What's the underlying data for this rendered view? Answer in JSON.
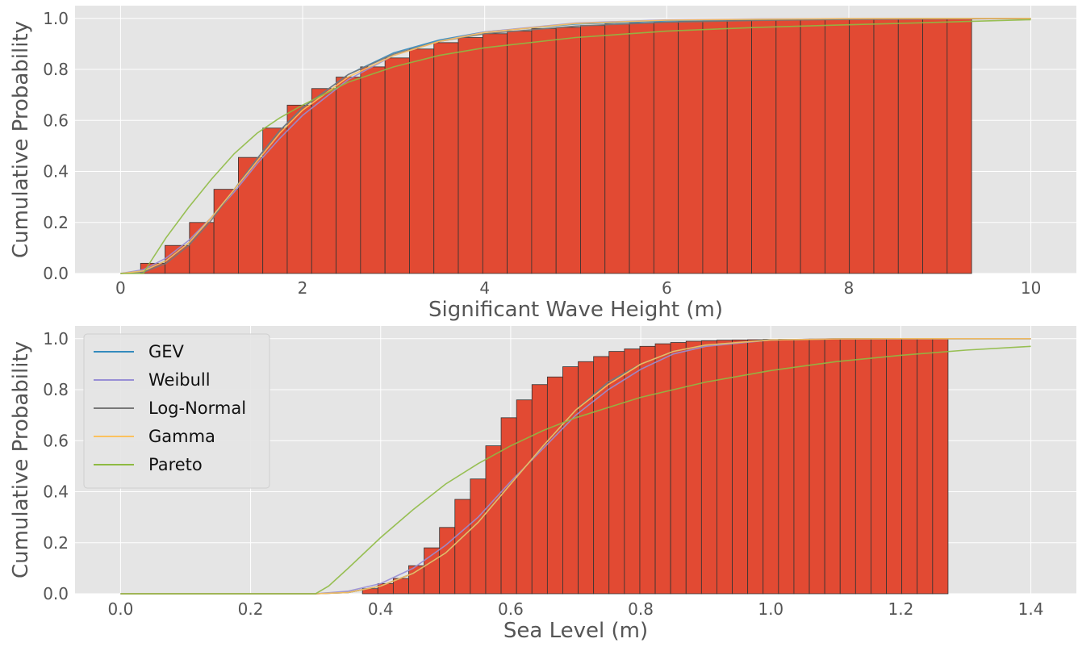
{
  "colors": {
    "panel_bg": "#e5e5e5",
    "grid": "#ffffff",
    "bar_fill": "#e24a33",
    "bar_edge": "#333333",
    "tick_text": "#555555",
    "legend_bg": "#e5e5e5",
    "legend_edge": "#cccccc"
  },
  "legend": {
    "placement": "upper-left of bottom panel",
    "entries": [
      {
        "label": "GEV",
        "color": "#348abd"
      },
      {
        "label": "Weibull",
        "color": "#988ed5"
      },
      {
        "label": "Log-Normal",
        "color": "#777777"
      },
      {
        "label": "Gamma",
        "color": "#fbc15e"
      },
      {
        "label": "Pareto",
        "color": "#8eba42"
      }
    ]
  },
  "chart_data": [
    {
      "type": "bar",
      "subtype": "cumulative histogram with fitted CDF lines",
      "xlabel": "Significant Wave Height (m)",
      "ylabel": "Cumulative Probability",
      "xlim": [
        -0.5,
        10.5
      ],
      "ylim": [
        0,
        1.05
      ],
      "grid": true,
      "xticks": [
        0,
        2,
        4,
        6,
        8,
        10
      ],
      "xtick_labels": [
        "0",
        "2",
        "4",
        "6",
        "8",
        "10"
      ],
      "yticks": [
        0.0,
        0.2,
        0.4,
        0.6,
        0.8,
        1.0
      ],
      "ytick_labels": [
        "0.0",
        "0.2",
        "0.4",
        "0.6",
        "0.8",
        "1.0"
      ],
      "bins": {
        "start": 0.22,
        "width": 0.2685,
        "values": [
          0.04,
          0.11,
          0.2,
          0.33,
          0.455,
          0.57,
          0.66,
          0.725,
          0.77,
          0.81,
          0.845,
          0.88,
          0.905,
          0.925,
          0.94,
          0.95,
          0.96,
          0.965,
          0.972,
          0.978,
          0.982,
          0.985,
          0.988,
          0.99,
          0.992,
          0.994,
          0.995,
          0.996,
          0.997,
          0.998,
          0.998,
          0.999,
          0.999,
          1.0
        ]
      },
      "series": [
        {
          "name": "GEV",
          "x": [
            0,
            0.25,
            0.5,
            0.75,
            1.0,
            1.25,
            1.5,
            1.75,
            2.0,
            2.5,
            3.0,
            3.5,
            4.0,
            5.0,
            6.0,
            7.0,
            8.0,
            9.0,
            10.0
          ],
          "y": [
            0.0,
            0.01,
            0.05,
            0.12,
            0.22,
            0.33,
            0.45,
            0.56,
            0.65,
            0.78,
            0.865,
            0.915,
            0.947,
            0.978,
            0.99,
            0.996,
            0.998,
            0.999,
            1.0
          ]
        },
        {
          "name": "Weibull",
          "x": [
            0,
            0.25,
            0.5,
            0.75,
            1.0,
            1.25,
            1.5,
            1.75,
            2.0,
            2.5,
            3.0,
            3.5,
            4.0,
            5.0,
            6.0,
            7.0,
            8.0,
            9.0,
            10.0
          ],
          "y": [
            0.0,
            0.015,
            0.06,
            0.13,
            0.22,
            0.32,
            0.43,
            0.53,
            0.62,
            0.76,
            0.855,
            0.91,
            0.947,
            0.982,
            0.994,
            0.998,
            0.999,
            1.0,
            1.0
          ]
        },
        {
          "name": "Log-Normal",
          "x": [
            0,
            0.25,
            0.5,
            0.75,
            1.0,
            1.25,
            1.5,
            1.75,
            2.0,
            2.5,
            3.0,
            3.5,
            4.0,
            5.0,
            6.0,
            7.0,
            8.0,
            9.0,
            10.0
          ],
          "y": [
            0.0,
            0.005,
            0.04,
            0.11,
            0.21,
            0.33,
            0.45,
            0.56,
            0.65,
            0.78,
            0.86,
            0.91,
            0.94,
            0.97,
            0.985,
            0.992,
            0.996,
            0.998,
            0.999
          ]
        },
        {
          "name": "Gamma",
          "x": [
            0,
            0.25,
            0.5,
            0.75,
            1.0,
            1.25,
            1.5,
            1.75,
            2.0,
            2.5,
            3.0,
            3.5,
            4.0,
            5.0,
            6.0,
            7.0,
            8.0,
            9.0,
            10.0
          ],
          "y": [
            0.0,
            0.01,
            0.05,
            0.12,
            0.22,
            0.33,
            0.44,
            0.55,
            0.64,
            0.77,
            0.855,
            0.91,
            0.945,
            0.98,
            0.993,
            0.997,
            0.999,
            1.0,
            1.0
          ]
        },
        {
          "name": "Pareto",
          "x": [
            0,
            0.25,
            0.3,
            0.5,
            0.75,
            1.0,
            1.25,
            1.5,
            1.75,
            2.0,
            2.5,
            3.0,
            3.5,
            4.0,
            5.0,
            6.0,
            7.0,
            8.0,
            9.0,
            10.0
          ],
          "y": [
            0.0,
            0.0,
            0.03,
            0.14,
            0.26,
            0.37,
            0.47,
            0.55,
            0.61,
            0.66,
            0.75,
            0.81,
            0.855,
            0.885,
            0.925,
            0.95,
            0.965,
            0.975,
            0.985,
            0.995
          ]
        }
      ]
    },
    {
      "type": "bar",
      "subtype": "cumulative histogram with fitted CDF lines",
      "xlabel": "Sea Level (m)",
      "ylabel": "Cumulative Probability",
      "xlim": [
        -0.07,
        1.47
      ],
      "ylim": [
        0,
        1.05
      ],
      "grid": true,
      "xticks": [
        0.0,
        0.2,
        0.4,
        0.6,
        0.8,
        1.0,
        1.2,
        1.4
      ],
      "xtick_labels": [
        "0.0",
        "0.2",
        "0.4",
        "0.6",
        "0.8",
        "1.0",
        "1.2",
        "1.4"
      ],
      "yticks": [
        0.0,
        0.2,
        0.4,
        0.6,
        0.8,
        1.0
      ],
      "ytick_labels": [
        "0.0",
        "0.2",
        "0.4",
        "0.6",
        "0.8",
        "1.0"
      ],
      "bins": {
        "start": 0.372,
        "width": 0.0237,
        "values": [
          0.02,
          0.04,
          0.06,
          0.11,
          0.18,
          0.26,
          0.37,
          0.45,
          0.58,
          0.69,
          0.76,
          0.82,
          0.85,
          0.89,
          0.91,
          0.93,
          0.95,
          0.96,
          0.97,
          0.98,
          0.985,
          0.99,
          0.992,
          0.994,
          0.995,
          0.996,
          0.997,
          0.998,
          0.998,
          0.999,
          0.999,
          0.999,
          0.999,
          0.999,
          0.999,
          0.999,
          1.0,
          1.0
        ]
      },
      "series": [
        {
          "name": "GEV",
          "x": [
            0.0,
            0.3,
            0.35,
            0.4,
            0.45,
            0.5,
            0.55,
            0.6,
            0.65,
            0.7,
            0.75,
            0.8,
            0.85,
            0.9,
            1.0,
            1.1,
            1.2,
            1.4
          ],
          "y": [
            0.0,
            0.0,
            0.005,
            0.03,
            0.08,
            0.16,
            0.28,
            0.43,
            0.58,
            0.72,
            0.83,
            0.9,
            0.95,
            0.975,
            0.995,
            0.999,
            1.0,
            1.0
          ]
        },
        {
          "name": "Weibull",
          "x": [
            0.0,
            0.3,
            0.35,
            0.4,
            0.45,
            0.5,
            0.55,
            0.6,
            0.65,
            0.7,
            0.75,
            0.8,
            0.85,
            0.9,
            1.0,
            1.1,
            1.2,
            1.4
          ],
          "y": [
            0.0,
            0.0,
            0.01,
            0.04,
            0.1,
            0.19,
            0.3,
            0.44,
            0.57,
            0.7,
            0.8,
            0.88,
            0.94,
            0.97,
            0.995,
            1.0,
            1.0,
            1.0
          ]
        },
        {
          "name": "Log-Normal",
          "x": [
            0.0,
            0.3,
            0.35,
            0.4,
            0.45,
            0.5,
            0.55,
            0.6,
            0.65,
            0.7,
            0.75,
            0.8,
            0.85,
            0.9,
            1.0,
            1.1,
            1.2,
            1.4
          ],
          "y": [
            0.0,
            0.0,
            0.005,
            0.03,
            0.08,
            0.16,
            0.28,
            0.43,
            0.58,
            0.72,
            0.83,
            0.9,
            0.95,
            0.975,
            0.995,
            0.999,
            1.0,
            1.0
          ]
        },
        {
          "name": "Gamma",
          "x": [
            0.0,
            0.3,
            0.35,
            0.4,
            0.45,
            0.5,
            0.55,
            0.6,
            0.65,
            0.7,
            0.75,
            0.8,
            0.85,
            0.9,
            1.0,
            1.1,
            1.2,
            1.4
          ],
          "y": [
            0.0,
            0.0,
            0.005,
            0.03,
            0.08,
            0.16,
            0.28,
            0.43,
            0.58,
            0.72,
            0.82,
            0.9,
            0.95,
            0.975,
            0.995,
            0.999,
            1.0,
            1.0
          ]
        },
        {
          "name": "Pareto",
          "x": [
            0.0,
            0.3,
            0.32,
            0.35,
            0.4,
            0.45,
            0.5,
            0.55,
            0.6,
            0.65,
            0.7,
            0.8,
            0.9,
            1.0,
            1.1,
            1.2,
            1.3,
            1.4
          ],
          "y": [
            0.0,
            0.0,
            0.03,
            0.1,
            0.22,
            0.33,
            0.43,
            0.51,
            0.58,
            0.64,
            0.69,
            0.77,
            0.83,
            0.875,
            0.91,
            0.935,
            0.955,
            0.97
          ]
        }
      ]
    }
  ]
}
